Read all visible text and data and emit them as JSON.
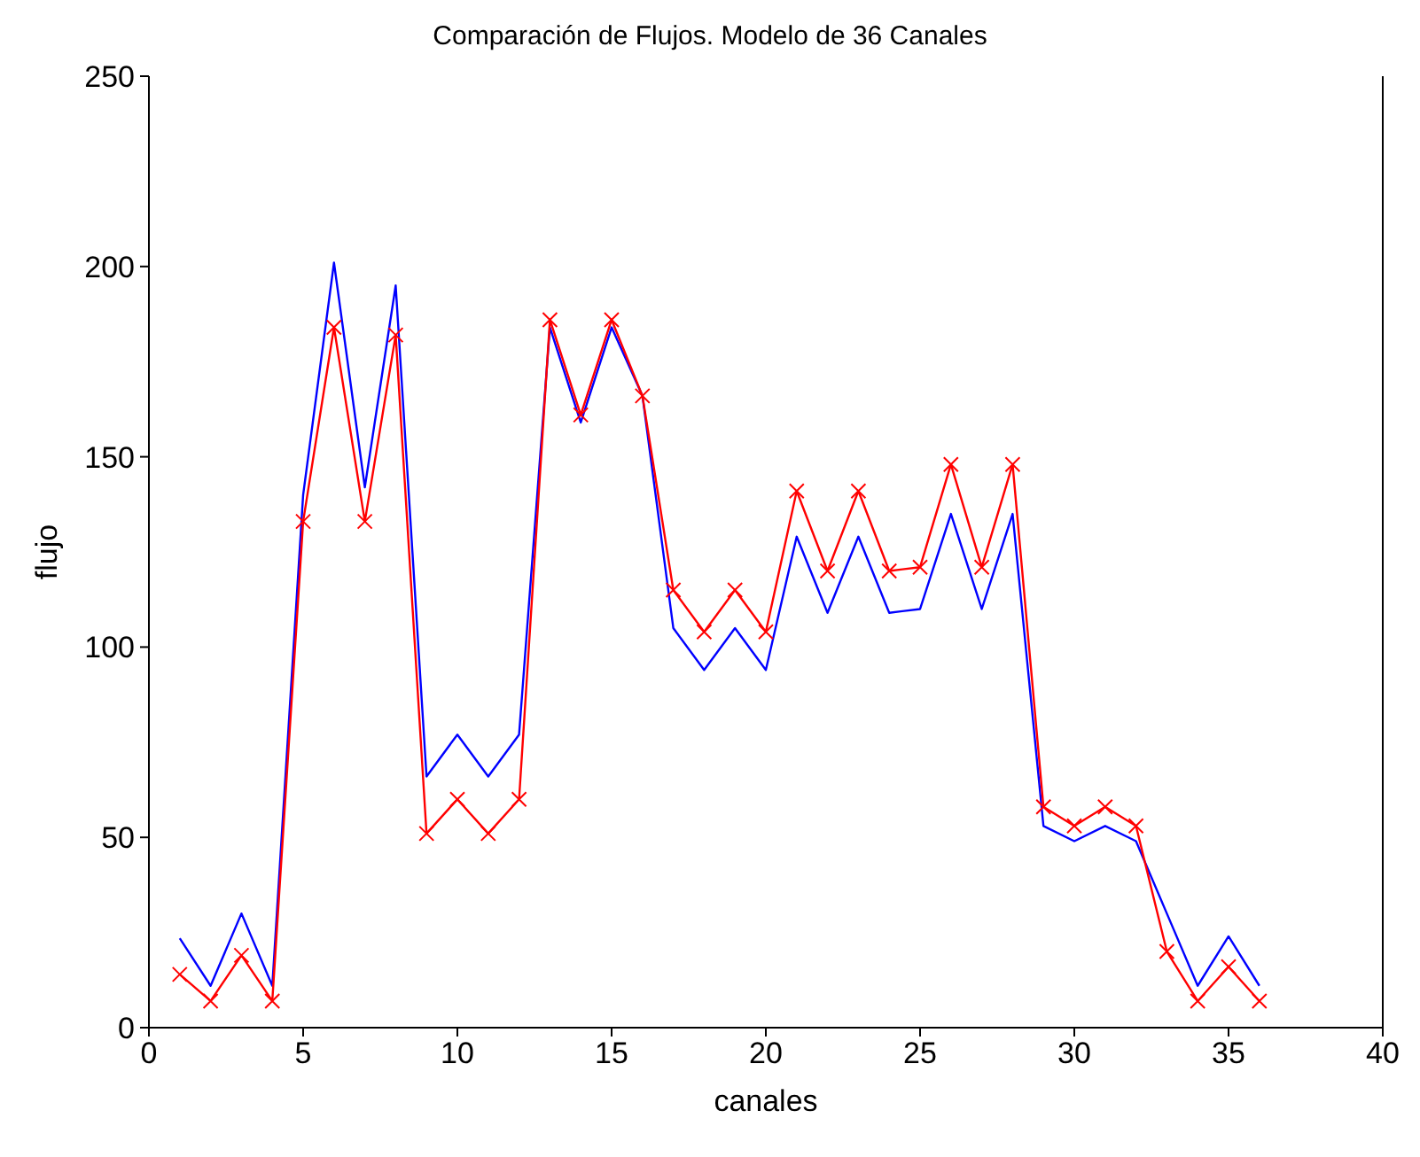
{
  "chart_data": {
    "type": "line",
    "title": "Comparación de Flujos. Modelo de 36 Canales",
    "xlabel": "canales",
    "ylabel": "flujo",
    "x": [
      1,
      2,
      3,
      4,
      5,
      6,
      7,
      8,
      9,
      10,
      11,
      12,
      13,
      14,
      15,
      16,
      17,
      18,
      19,
      20,
      21,
      22,
      23,
      24,
      25,
      26,
      27,
      28,
      29,
      30,
      31,
      32,
      33,
      34,
      35,
      36
    ],
    "series": [
      {
        "color": "#0000ff",
        "marker": "none",
        "values": [
          23.5,
          11,
          30,
          11,
          140,
          201,
          142,
          195,
          66,
          77,
          66,
          77,
          184,
          159,
          184,
          166,
          105,
          94,
          105,
          94,
          129,
          109,
          129,
          109,
          110,
          135,
          110,
          135,
          53,
          49,
          53,
          49,
          30,
          11,
          24,
          11
        ]
      },
      {
        "color": "#ff0000",
        "marker": "cross",
        "values": [
          14,
          7,
          19,
          7,
          133,
          184,
          133,
          182,
          51,
          60,
          51,
          60,
          186,
          161,
          186,
          166,
          115,
          104,
          115,
          104,
          141,
          120,
          141,
          120,
          121,
          148,
          121,
          148,
          58,
          53,
          58,
          53,
          20,
          7,
          16,
          7
        ]
      }
    ],
    "xlim": [
      0,
      40
    ],
    "xticks": [
      0,
      5,
      10,
      15,
      20,
      25,
      30,
      35,
      40
    ],
    "ylim": [
      0,
      250
    ],
    "yticks": [
      0,
      50,
      100,
      150,
      200,
      250
    ],
    "grid": false,
    "legend": false,
    "line_style": "solid"
  }
}
